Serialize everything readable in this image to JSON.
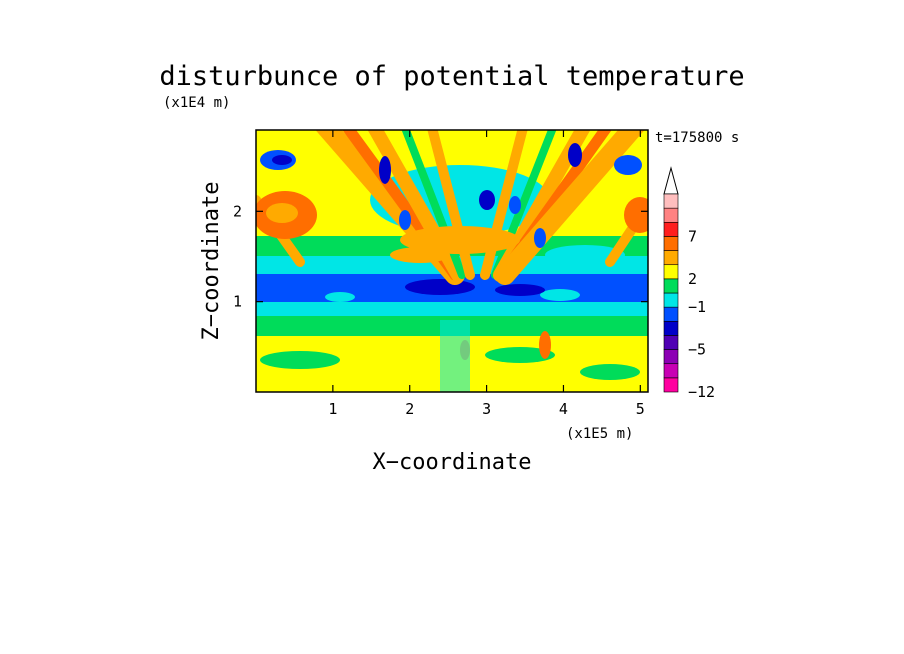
{
  "chart_data": {
    "type": "heatmap",
    "title": "disturbunce of potential temperature",
    "xlabel": "X−coordinate",
    "ylabel": "Z−coordinate",
    "x_unit": "(x1E5 m)",
    "y_unit": "(x1E4 m)",
    "time_label": "t=175800 s",
    "xlim": [
      0,
      5.1
    ],
    "ylim": [
      0,
      2.9
    ],
    "x_ticks": [
      1,
      2,
      3,
      4,
      5
    ],
    "y_ticks": [
      1,
      2
    ],
    "x_tick_labels": [
      "1",
      "2",
      "3",
      "4",
      "5"
    ],
    "y_tick_labels": [
      "1",
      "2"
    ],
    "colorbar": {
      "levels_from_bottom": [
        {
          "level": "-12",
          "color": "#ff00a0"
        },
        {
          "level": "",
          "color": "#c800b4"
        },
        {
          "level": "",
          "color": "#8c00b4"
        },
        {
          "level": "-5",
          "color": "#5000b4"
        },
        {
          "level": "",
          "color": "#0000c8"
        },
        {
          "level": "",
          "color": "#0050ff"
        },
        {
          "level": "-1",
          "color": "#00e6e6"
        },
        {
          "level": "",
          "color": "#00dc5a"
        },
        {
          "level": "2",
          "color": "#ffff00"
        },
        {
          "level": "",
          "color": "#ffaa00"
        },
        {
          "level": "",
          "color": "#ff6e00"
        },
        {
          "level": "7",
          "color": "#ff1e1e"
        },
        {
          "level": "",
          "color": "#ff8282"
        },
        {
          "level": "",
          "color": "#ffbebe"
        }
      ],
      "tick_labels": [
        "7",
        "2",
        "−1",
        "−5",
        "−12"
      ]
    },
    "features": [
      "Fan of alternating warm and cold bands radiating upward from near x≈3×10^5 m",
      "Cold (blue) layer near z≈1.1–1.4×10^4 m across the domain",
      "Warm (orange) region near x≈0.3×10^5 m, z≈2×10^4 m"
    ]
  }
}
